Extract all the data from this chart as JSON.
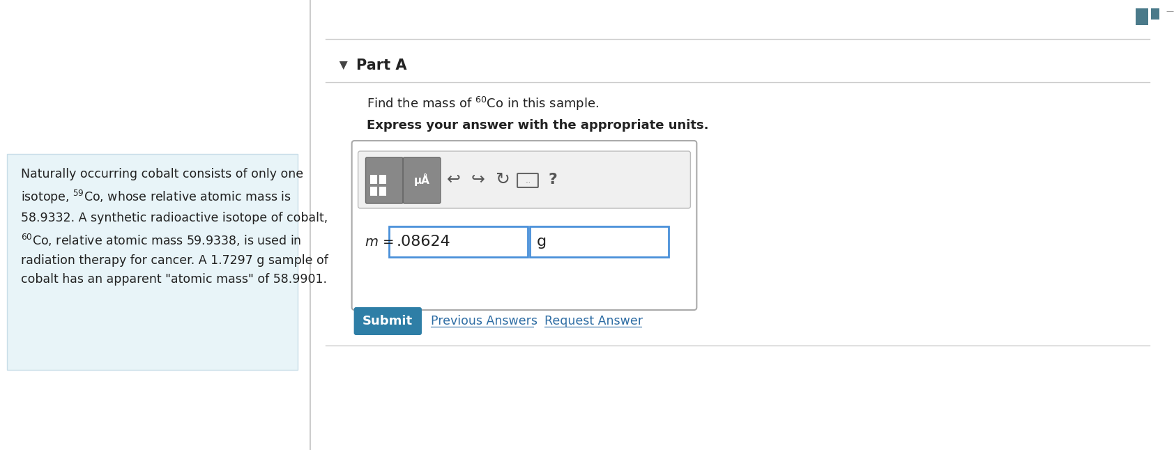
{
  "bg_color": "#ffffff",
  "left_panel_bg": "#e8f4f8",
  "left_panel_border": "#c8dde8",
  "part_a_label": "Part A",
  "bold_text": "Express your answer with the appropriate units.",
  "answer_value": ".08624",
  "answer_unit": "g",
  "submit_color": "#2e7ea6",
  "submit_text": "Submit",
  "prev_answers_text": "Previous Answers",
  "request_answer_text": "Request Answer",
  "link_color": "#2e6da4",
  "divider_color": "#cccccc",
  "top_right_blocks_color": "#4a7a8a",
  "answer_box_border": "#4a90d9",
  "toolbar_bg": "#f0f0f0",
  "toolbar_border": "#bbbbbb"
}
